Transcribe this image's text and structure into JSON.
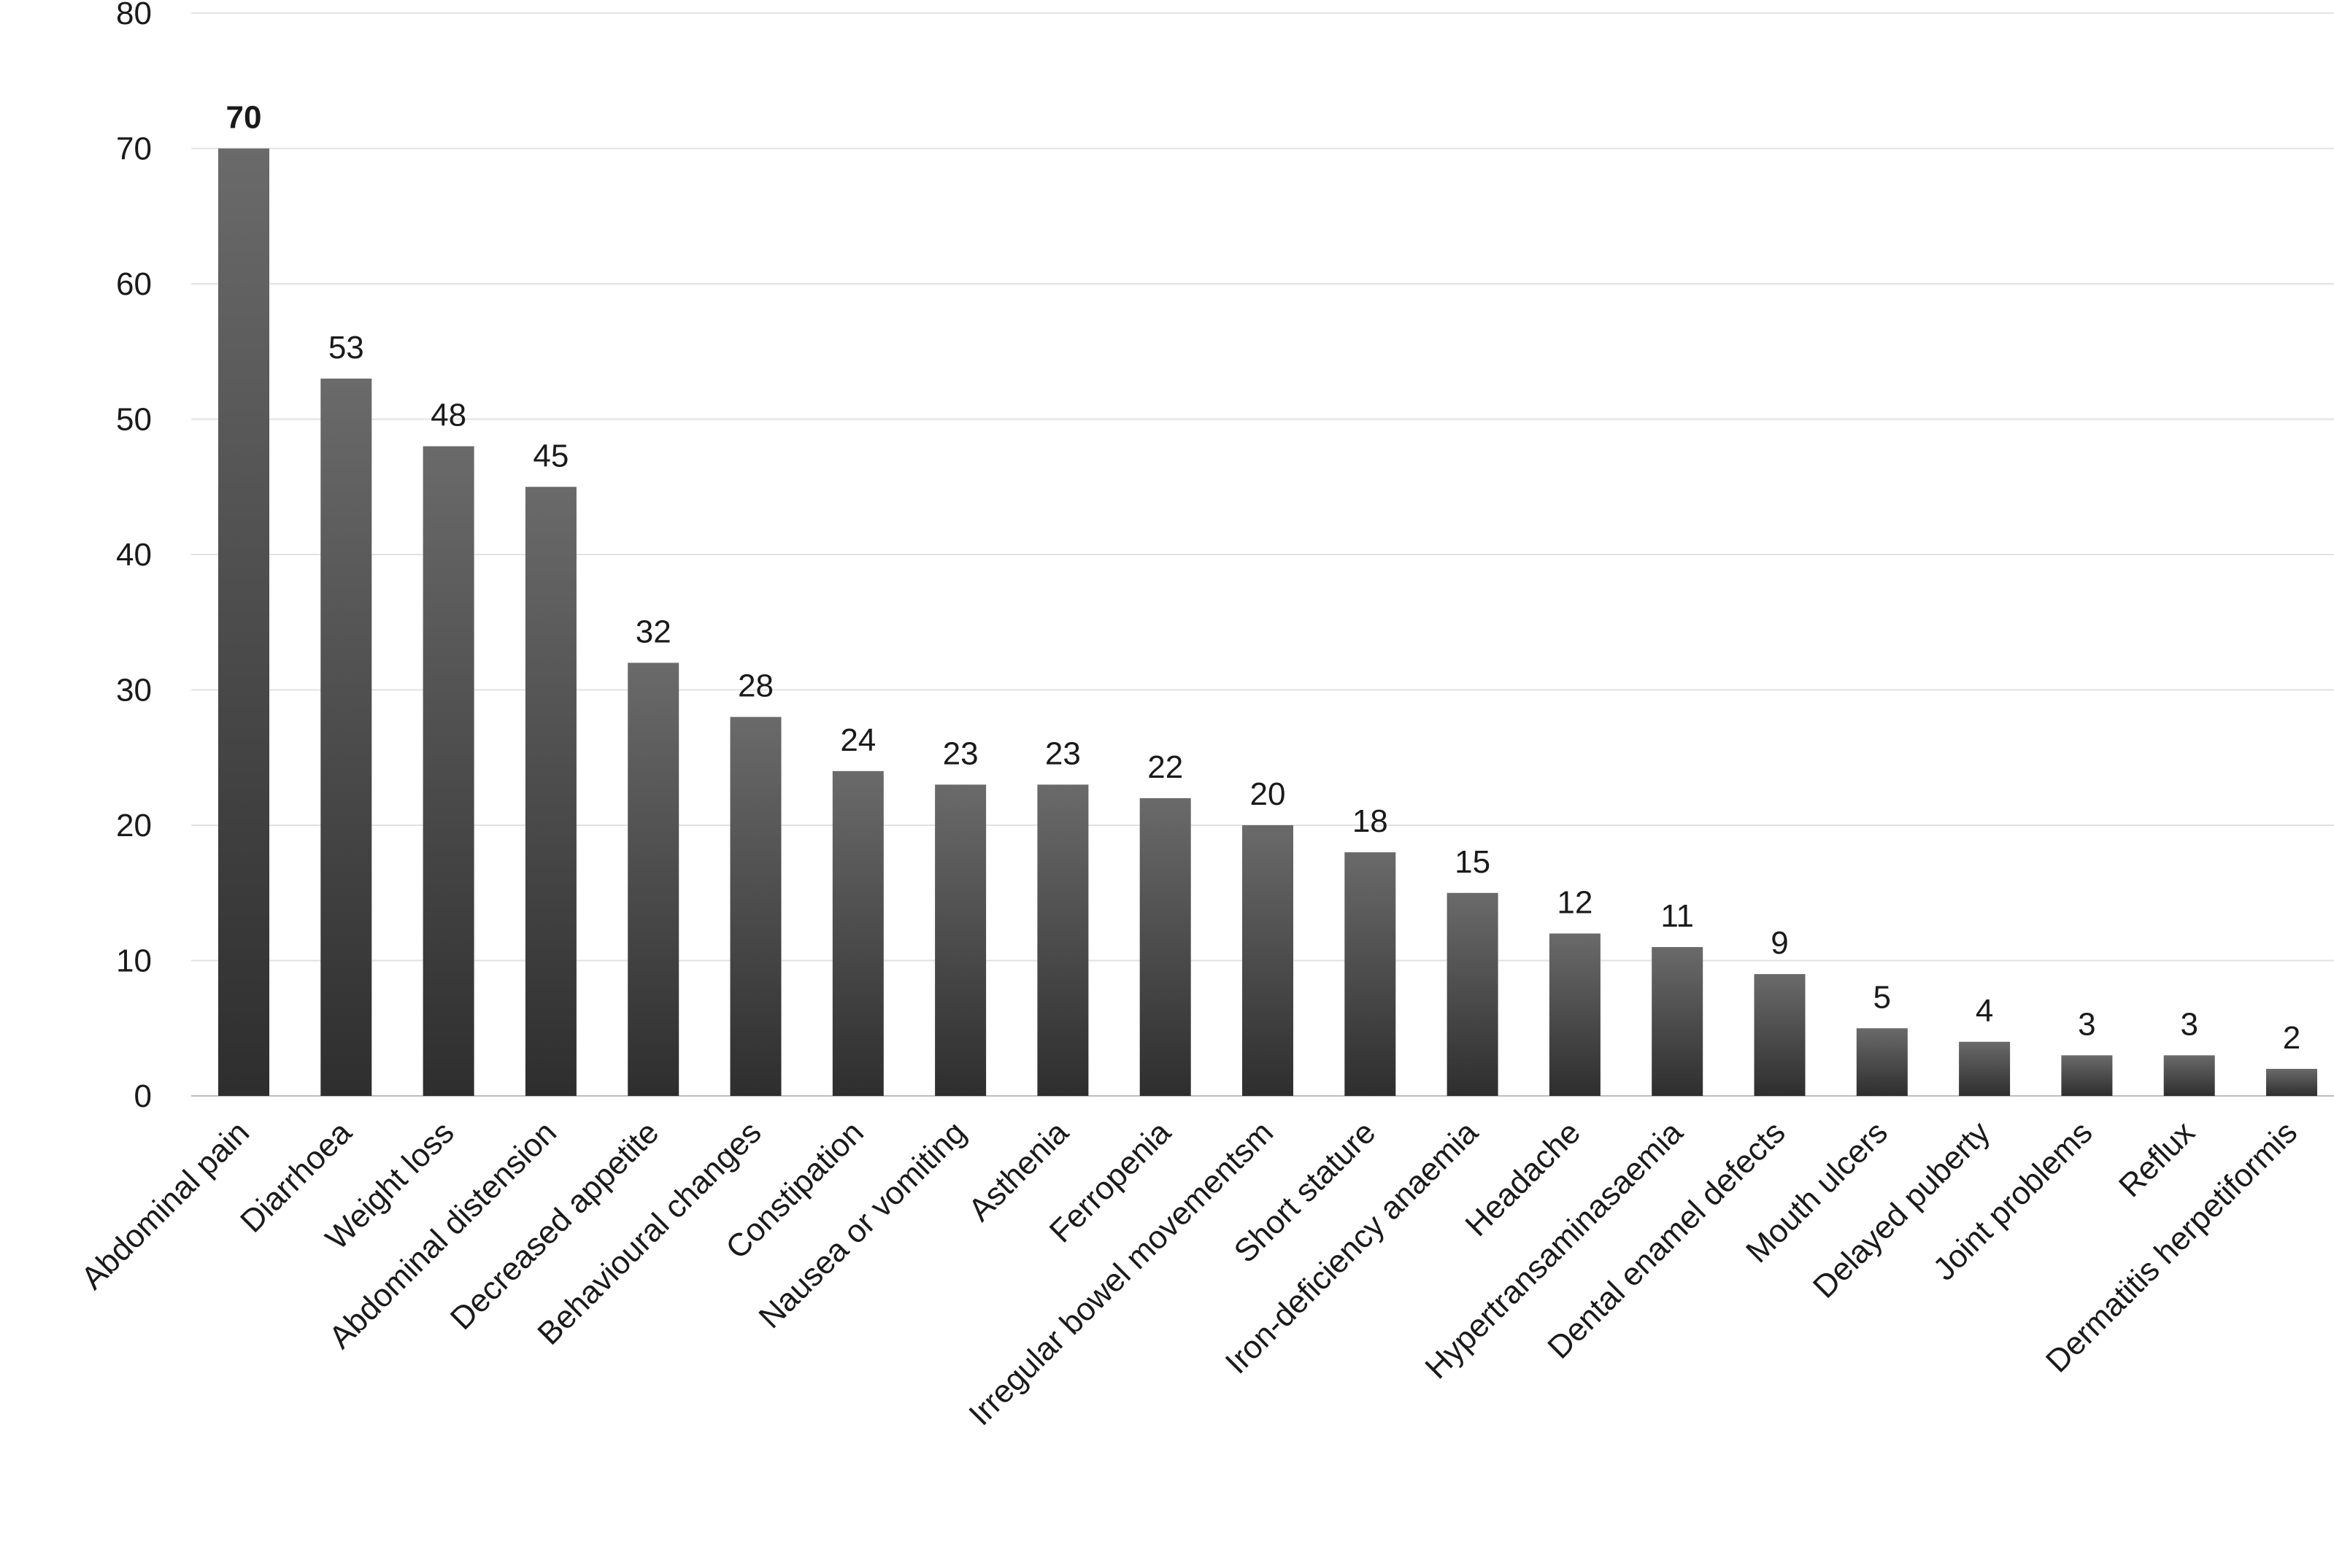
{
  "chart_data": {
    "type": "bar",
    "title": "",
    "xlabel": "",
    "ylabel": "",
    "ylim": [
      0,
      80
    ],
    "yticks": [
      0,
      10,
      20,
      30,
      40,
      50,
      60,
      70,
      80
    ],
    "grid": true,
    "legend": "none",
    "bar_color": "#404040",
    "categories": [
      "Abdominal pain",
      "Diarrhoea",
      "Weight loss",
      "Abdominal distension",
      "Decreased appetite",
      "Behavioural changes",
      "Constipation",
      "Nausea or vomiting",
      "Asthenia",
      "Ferropenia",
      "Irregular bowel movementsm",
      "Short stature",
      "Iron-deficiency anaemia",
      "Headache",
      "Hypertransaminasaemia",
      "Dental enamel defects",
      "Mouth ulcers",
      "Delayed puberty",
      "Joint problems",
      "Reflux",
      "Dermatitis herpetiformis"
    ],
    "values": [
      70,
      53,
      48,
      45,
      32,
      28,
      24,
      23,
      23,
      22,
      20,
      18,
      15,
      12,
      11,
      9,
      5,
      4,
      3,
      3,
      2
    ]
  }
}
